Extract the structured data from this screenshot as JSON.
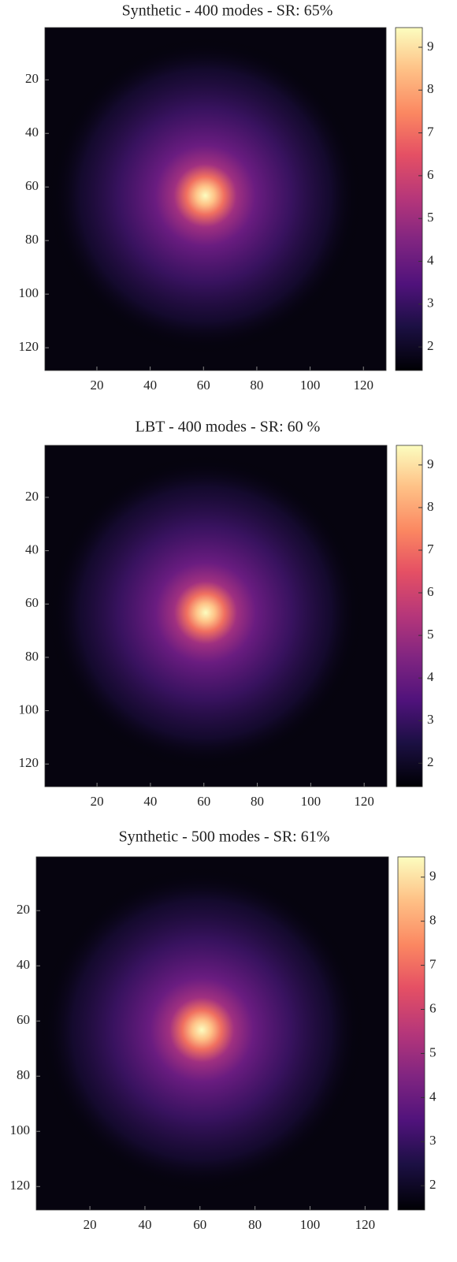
{
  "chart_data": [
    {
      "type": "heatmap",
      "title": "Synthetic - 400 modes - SR: 65%",
      "colormap": "magma",
      "xlim": [
        0.5,
        128.5
      ],
      "ylim": [
        0.5,
        128.5
      ],
      "xticks": [
        20,
        40,
        60,
        80,
        100,
        120
      ],
      "yticks": [
        20,
        40,
        60,
        80,
        100,
        120
      ],
      "clim": [
        1.45,
        9.46
      ],
      "cticks": [
        2,
        3,
        4,
        5,
        6,
        7,
        8,
        9
      ]
    },
    {
      "type": "heatmap",
      "title": "LBT - 400 modes - SR: 60 %",
      "colormap": "magma",
      "xlim": [
        0.5,
        128.5
      ],
      "ylim": [
        0.5,
        128.5
      ],
      "xticks": [
        20,
        40,
        60,
        80,
        100,
        120
      ],
      "yticks": [
        20,
        40,
        60,
        80,
        100,
        120
      ],
      "clim": [
        1.45,
        9.46
      ],
      "cticks": [
        2,
        3,
        4,
        5,
        6,
        7,
        8,
        9
      ]
    },
    {
      "type": "heatmap",
      "title": "Synthetic - 500 modes - SR: 61%",
      "colormap": "magma",
      "xlim": [
        0.5,
        128.5
      ],
      "ylim": [
        0.5,
        128.5
      ],
      "xticks": [
        20,
        40,
        60,
        80,
        100,
        120
      ],
      "yticks": [
        20,
        40,
        60,
        80,
        100,
        120
      ],
      "clim": [
        1.45,
        9.46
      ],
      "cticks": [
        2,
        3,
        4,
        5,
        6,
        7,
        8,
        9
      ]
    }
  ]
}
